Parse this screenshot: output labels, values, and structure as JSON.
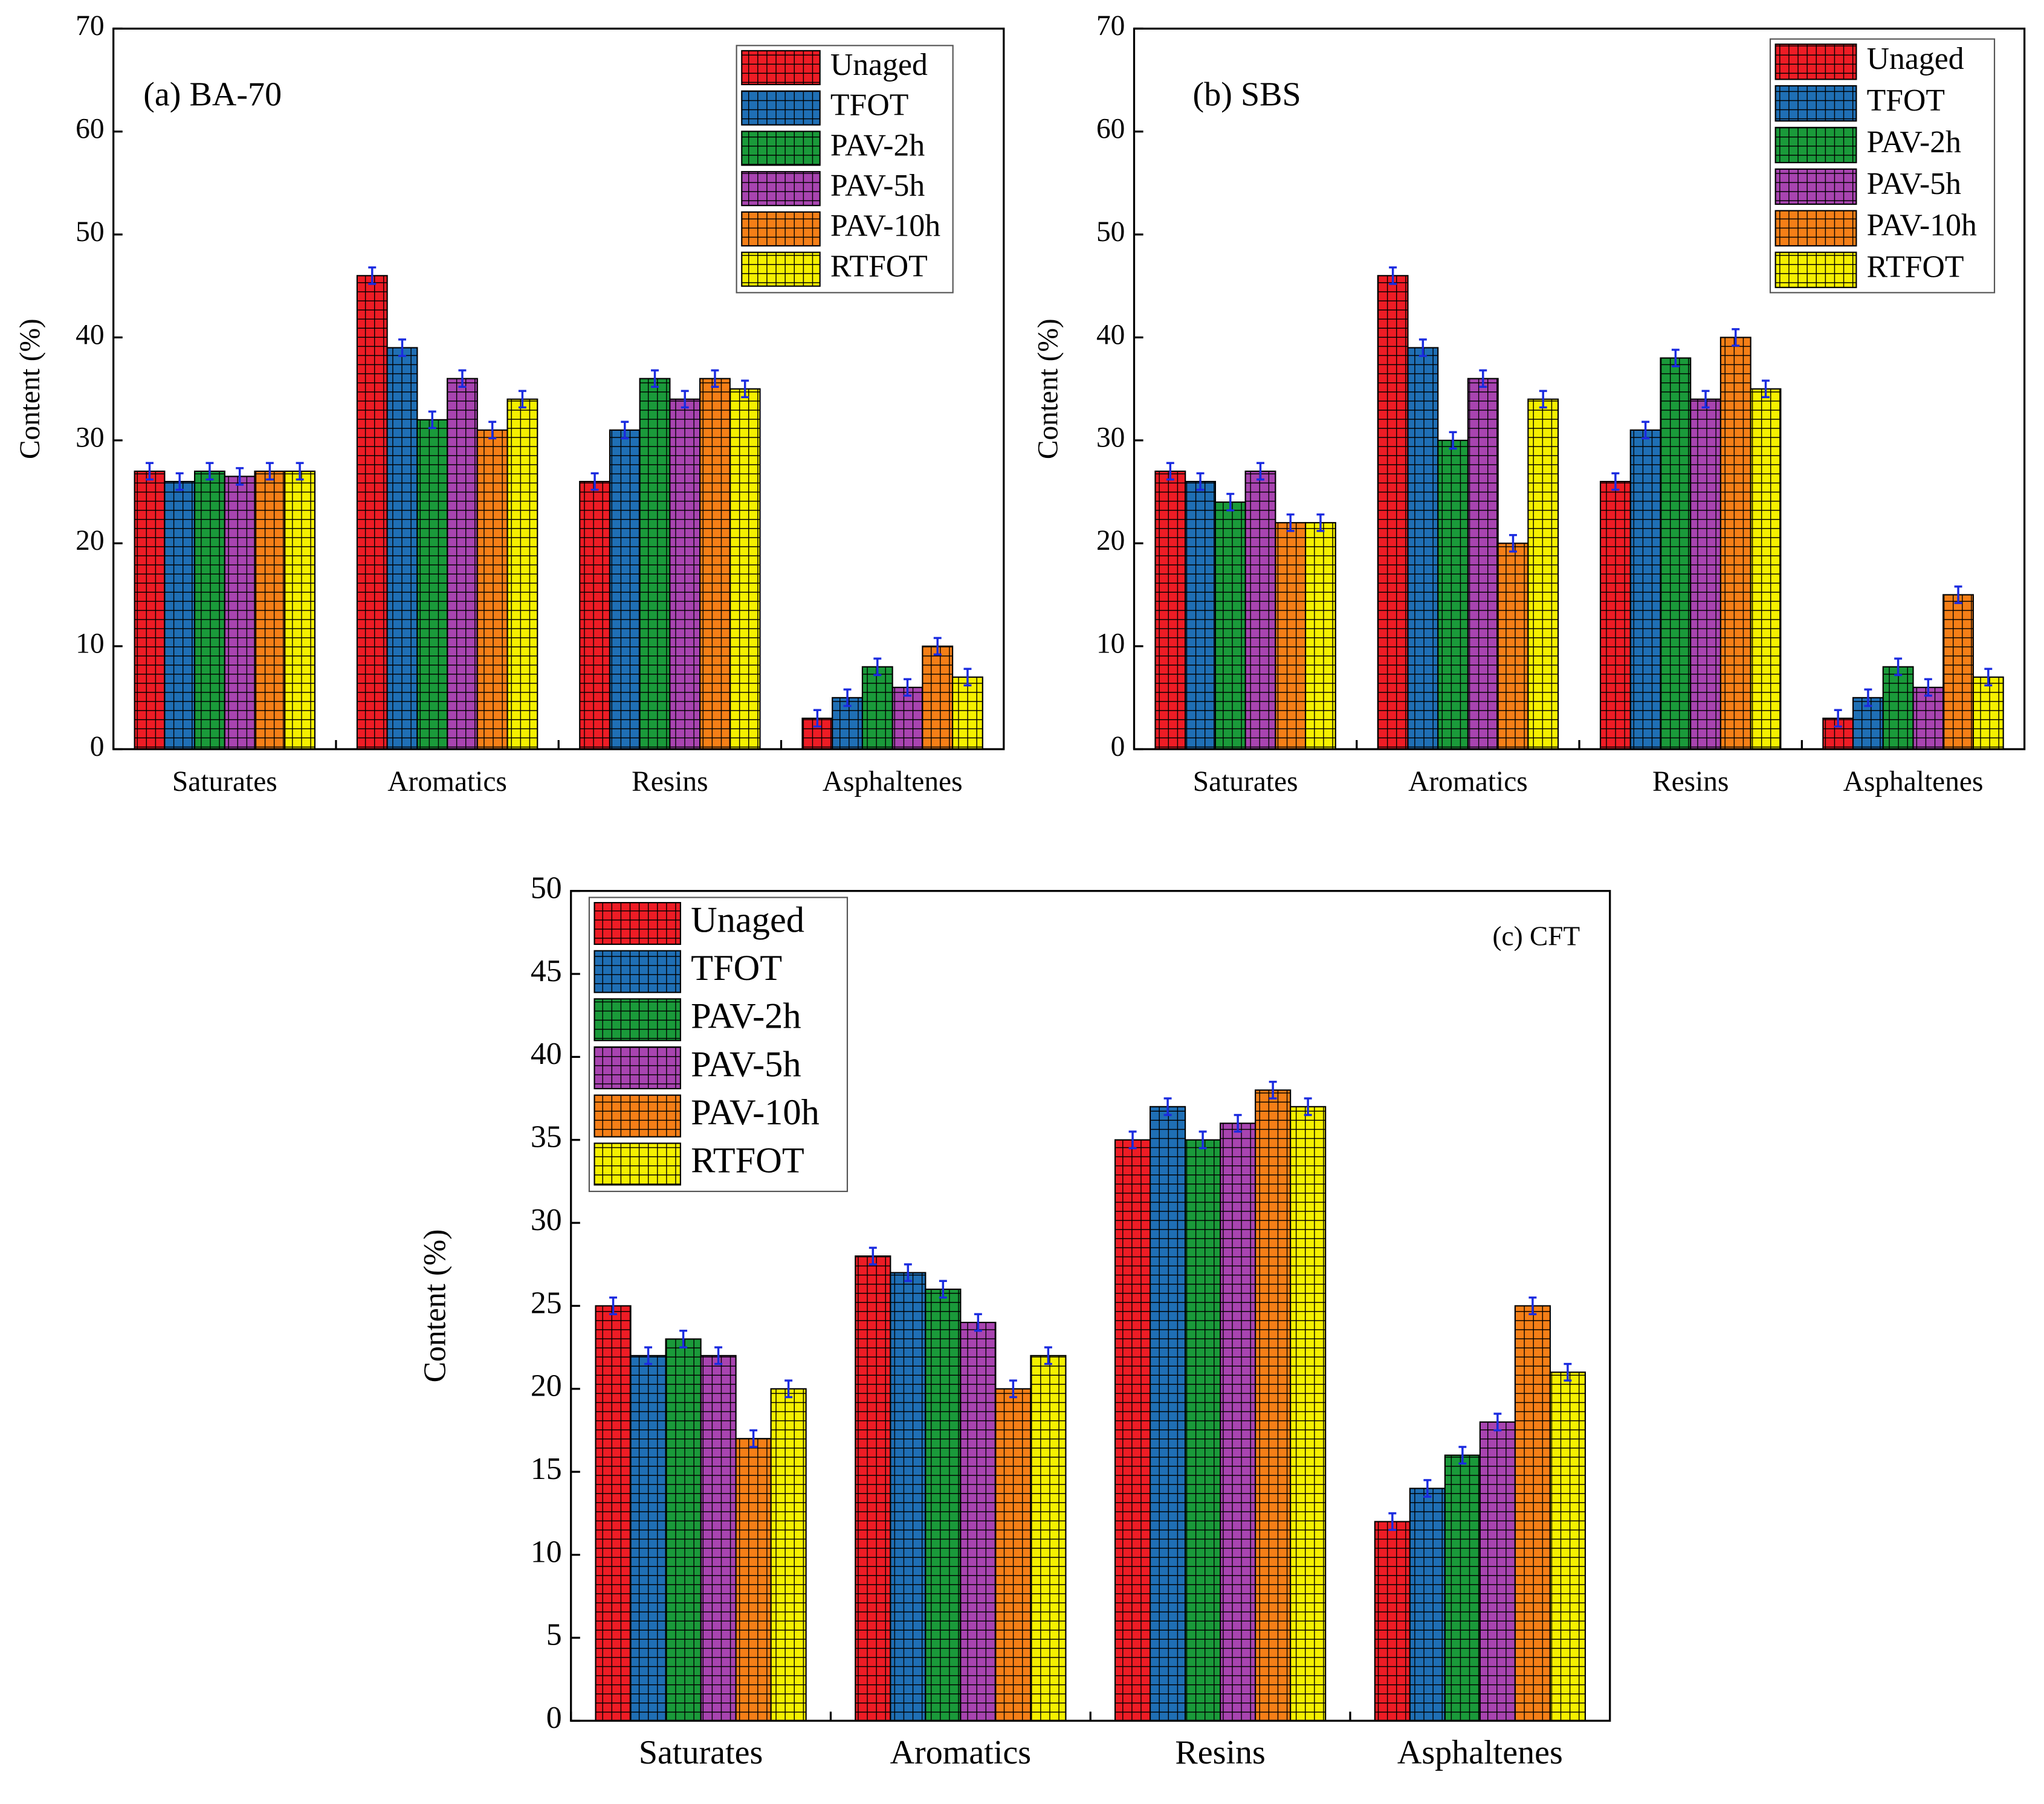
{
  "chart_data": [
    {
      "type": "bar",
      "panel_label": "(a) BA-70",
      "y_label": "Content (%)",
      "categories": [
        "Saturates",
        "Aromatics",
        "Resins",
        "Asphaltenes"
      ],
      "ylim": [
        0,
        70
      ],
      "yticks": [
        0,
        10,
        20,
        30,
        40,
        50,
        60,
        70
      ],
      "series": [
        {
          "name": "Unaged",
          "color": "#ee1c25",
          "values": [
            27,
            46,
            26,
            3
          ],
          "errors": [
            0.8,
            0.8,
            0.8,
            0.8
          ]
        },
        {
          "name": "TFOT",
          "color": "#1f6fb5",
          "values": [
            26,
            39,
            31,
            5
          ],
          "errors": [
            0.8,
            0.8,
            0.8,
            0.8
          ]
        },
        {
          "name": "PAV-2h",
          "color": "#1a9a3a",
          "values": [
            27,
            32,
            36,
            8
          ],
          "errors": [
            0.8,
            0.8,
            0.8,
            0.8
          ]
        },
        {
          "name": "PAV-5h",
          "color": "#a844b0",
          "values": [
            26.5,
            36,
            34,
            6
          ],
          "errors": [
            0.8,
            0.8,
            0.8,
            0.8
          ]
        },
        {
          "name": "PAV-10h",
          "color": "#f57f17",
          "values": [
            27,
            31,
            36,
            10
          ],
          "errors": [
            0.8,
            0.8,
            0.8,
            0.8
          ]
        },
        {
          "name": "RTFOT",
          "color": "#f5f000",
          "values": [
            27,
            34,
            35,
            7
          ],
          "errors": [
            0.8,
            0.8,
            0.8,
            0.8
          ]
        }
      ]
    },
    {
      "type": "bar",
      "panel_label": "(b) SBS",
      "y_label": "Content (%)",
      "categories": [
        "Saturates",
        "Aromatics",
        "Resins",
        "Asphaltenes"
      ],
      "ylim": [
        0,
        70
      ],
      "yticks": [
        0,
        10,
        20,
        30,
        40,
        50,
        60,
        70
      ],
      "series": [
        {
          "name": "Unaged",
          "color": "#ee1c25",
          "values": [
            27,
            46,
            26,
            3
          ],
          "errors": [
            0.8,
            0.8,
            0.8,
            0.8
          ]
        },
        {
          "name": "TFOT",
          "color": "#1f6fb5",
          "values": [
            26,
            39,
            31,
            5
          ],
          "errors": [
            0.8,
            0.8,
            0.8,
            0.8
          ]
        },
        {
          "name": "PAV-2h",
          "color": "#1a9a3a",
          "values": [
            24,
            30,
            38,
            8
          ],
          "errors": [
            0.8,
            0.8,
            0.8,
            0.8
          ]
        },
        {
          "name": "PAV-5h",
          "color": "#a844b0",
          "values": [
            27,
            36,
            34,
            6
          ],
          "errors": [
            0.8,
            0.8,
            0.8,
            0.8
          ]
        },
        {
          "name": "PAV-10h",
          "color": "#f57f17",
          "values": [
            22,
            20,
            40,
            15
          ],
          "errors": [
            0.8,
            0.8,
            0.8,
            0.8
          ]
        },
        {
          "name": "RTFOT",
          "color": "#f5f000",
          "values": [
            22,
            34,
            35,
            7
          ],
          "errors": [
            0.8,
            0.8,
            0.8,
            0.8
          ]
        }
      ]
    },
    {
      "type": "bar",
      "panel_label": "(c) CFT",
      "y_label": "Content (%)",
      "categories": [
        "Saturates",
        "Aromatics",
        "Resins",
        "Asphaltenes"
      ],
      "ylim": [
        0,
        50
      ],
      "yticks": [
        0,
        5,
        10,
        15,
        20,
        25,
        30,
        35,
        40,
        45,
        50
      ],
      "series": [
        {
          "name": "Unaged",
          "color": "#ee1c25",
          "values": [
            25,
            28,
            35,
            12
          ],
          "errors": [
            0.5,
            0.5,
            0.5,
            0.5
          ]
        },
        {
          "name": "TFOT",
          "color": "#1f6fb5",
          "values": [
            22,
            27,
            37,
            14
          ],
          "errors": [
            0.5,
            0.5,
            0.5,
            0.5
          ]
        },
        {
          "name": "PAV-2h",
          "color": "#1a9a3a",
          "values": [
            23,
            26,
            35,
            16
          ],
          "errors": [
            0.5,
            0.5,
            0.5,
            0.5
          ]
        },
        {
          "name": "PAV-5h",
          "color": "#a844b0",
          "values": [
            22,
            24,
            36,
            18
          ],
          "errors": [
            0.5,
            0.5,
            0.5,
            0.5
          ]
        },
        {
          "name": "PAV-10h",
          "color": "#f57f17",
          "values": [
            17,
            20,
            38,
            25
          ],
          "errors": [
            0.5,
            0.5,
            0.5,
            0.5
          ]
        },
        {
          "name": "RTFOT",
          "color": "#f5f000",
          "values": [
            20,
            22,
            37,
            21
          ],
          "errors": [
            0.5,
            0.5,
            0.5,
            0.5
          ]
        }
      ]
    }
  ]
}
